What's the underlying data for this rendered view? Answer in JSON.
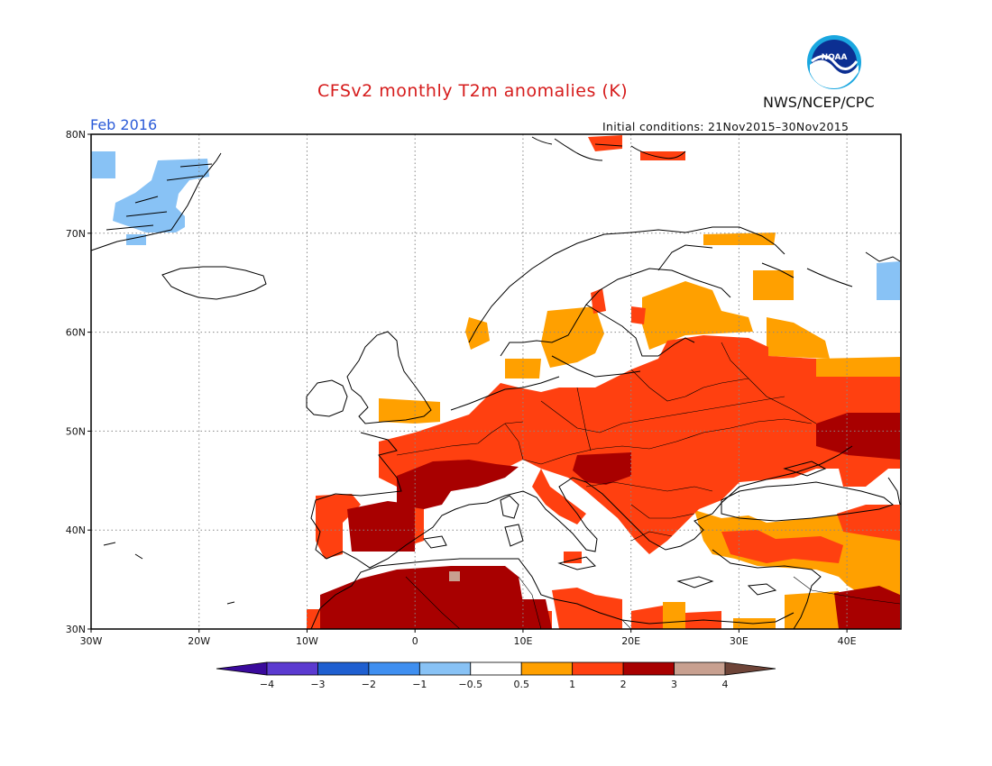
{
  "header": {
    "title": "CFSv2 monthly T2m anomalies (K)",
    "organization": "NWS/NCEP/CPC",
    "logo_text": "NOAA",
    "valid_month": "Feb 2016",
    "initial_conditions": "Initial conditions: 21Nov2015–30Nov2015"
  },
  "map": {
    "lat_labels": [
      "80N",
      "70N",
      "60N",
      "50N",
      "40N",
      "30N"
    ],
    "lon_labels": [
      "30W",
      "20W",
      "10W",
      "0",
      "10E",
      "20E",
      "30E",
      "40E"
    ],
    "lon_range": [
      -30,
      45
    ],
    "lat_range": [
      30,
      80
    ]
  },
  "legend": {
    "labels": [
      "−4",
      "−3",
      "−2",
      "−1",
      "−0.5",
      "0.5",
      "1",
      "2",
      "3",
      "4"
    ],
    "colors": [
      "#3a0a9c",
      "#5b3ad0",
      "#1f5fd0",
      "#3f8ff0",
      "#88c2f5",
      "#ffffff",
      "#ffa000",
      "#ff4010",
      "#a80000",
      "#c8a090",
      "#6e4438"
    ]
  }
}
